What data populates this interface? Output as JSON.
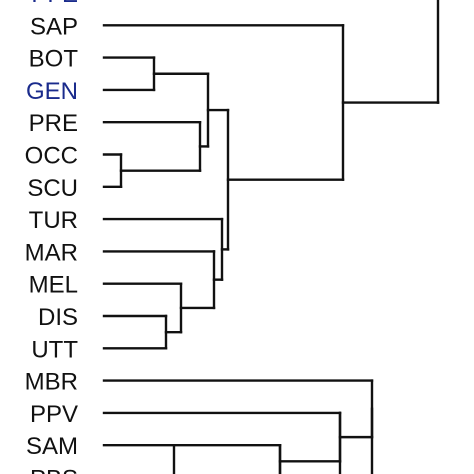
{
  "dendrogram": {
    "leaves": [
      {
        "id": "pfe",
        "label": "PFE",
        "color": "#1a2b8c"
      },
      {
        "id": "sap",
        "label": "SAP",
        "color": "#111111"
      },
      {
        "id": "bot",
        "label": "BOT",
        "color": "#111111"
      },
      {
        "id": "gen",
        "label": "GEN",
        "color": "#1a2b8c"
      },
      {
        "id": "pre",
        "label": "PRE",
        "color": "#111111"
      },
      {
        "id": "occ",
        "label": "OCC",
        "color": "#111111"
      },
      {
        "id": "scu",
        "label": "SCU",
        "color": "#111111"
      },
      {
        "id": "tur",
        "label": "TUR",
        "color": "#111111"
      },
      {
        "id": "mar",
        "label": "MAR",
        "color": "#111111"
      },
      {
        "id": "mel",
        "label": "MEL",
        "color": "#111111"
      },
      {
        "id": "dis",
        "label": "DIS",
        "color": "#111111"
      },
      {
        "id": "utt",
        "label": "UTT",
        "color": "#111111"
      },
      {
        "id": "mbr",
        "label": "MBR",
        "color": "#111111"
      },
      {
        "id": "ppv",
        "label": "PPV",
        "color": "#111111"
      },
      {
        "id": "sam",
        "label": "SAM",
        "color": "#111111"
      },
      {
        "id": "pbs",
        "label": "PBS",
        "color": "#111111"
      }
    ],
    "line_color": "#111111"
  }
}
